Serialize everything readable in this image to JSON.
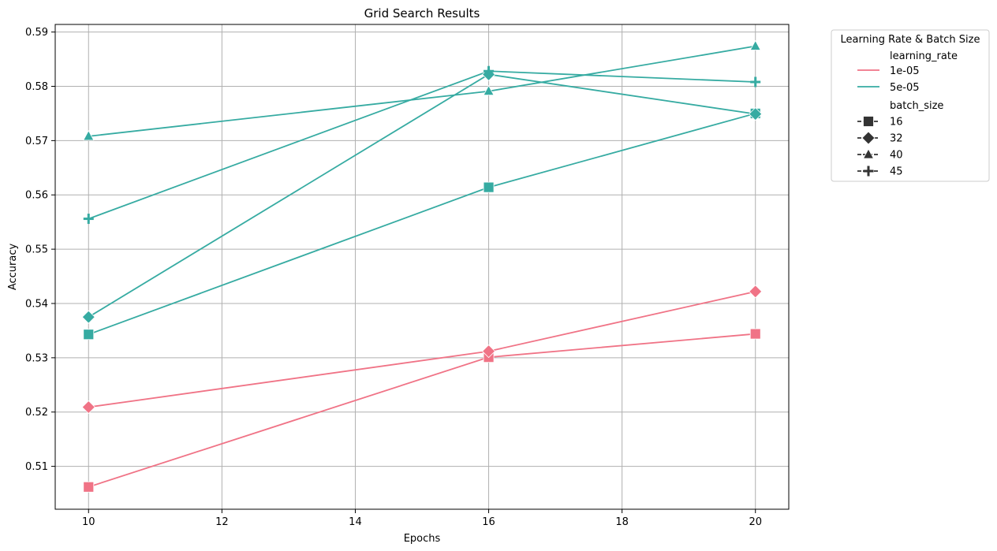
{
  "chart_data": {
    "type": "line",
    "title": "Grid Search Results",
    "xlabel": "Epochs",
    "ylabel": "Accuracy",
    "xlim": [
      9.5,
      20.5
    ],
    "ylim": [
      0.5021,
      0.5914
    ],
    "x_ticks": [
      10,
      12,
      14,
      16,
      18,
      20
    ],
    "y_ticks": [
      0.51,
      0.52,
      0.53,
      0.54,
      0.55,
      0.56,
      0.57,
      0.58,
      0.59
    ],
    "grid": true,
    "x": [
      10,
      16,
      20
    ],
    "series": [
      {
        "learning_rate": "1e-05",
        "batch_size": "16",
        "values": [
          0.5062,
          0.5301,
          0.5344
        ]
      },
      {
        "learning_rate": "1e-05",
        "batch_size": "32",
        "values": [
          0.5209,
          0.5312,
          0.5422
        ]
      },
      {
        "learning_rate": "5e-05",
        "batch_size": "16",
        "values": [
          0.5343,
          0.5614,
          0.575
        ]
      },
      {
        "learning_rate": "5e-05",
        "batch_size": "32",
        "values": [
          0.5375,
          0.5822,
          0.5749
        ]
      },
      {
        "learning_rate": "5e-05",
        "batch_size": "40",
        "values": [
          0.5708,
          0.5791,
          0.5874
        ]
      },
      {
        "learning_rate": "5e-05",
        "batch_size": "45",
        "values": [
          0.5556,
          0.5828,
          0.5808
        ]
      }
    ],
    "legend": {
      "title": "Learning Rate & Batch Size",
      "placement": "outside-upper-right",
      "hue_title": "learning_rate",
      "hue_entries": [
        {
          "label": "1e-05",
          "color": "#f07386"
        },
        {
          "label": "5e-05",
          "color": "#36aba2"
        }
      ],
      "style_title": "batch_size",
      "style_entries": [
        {
          "label": "16",
          "marker": "square"
        },
        {
          "label": "32",
          "marker": "diamond"
        },
        {
          "label": "40",
          "marker": "triangle"
        },
        {
          "label": "45",
          "marker": "plus"
        }
      ]
    }
  }
}
